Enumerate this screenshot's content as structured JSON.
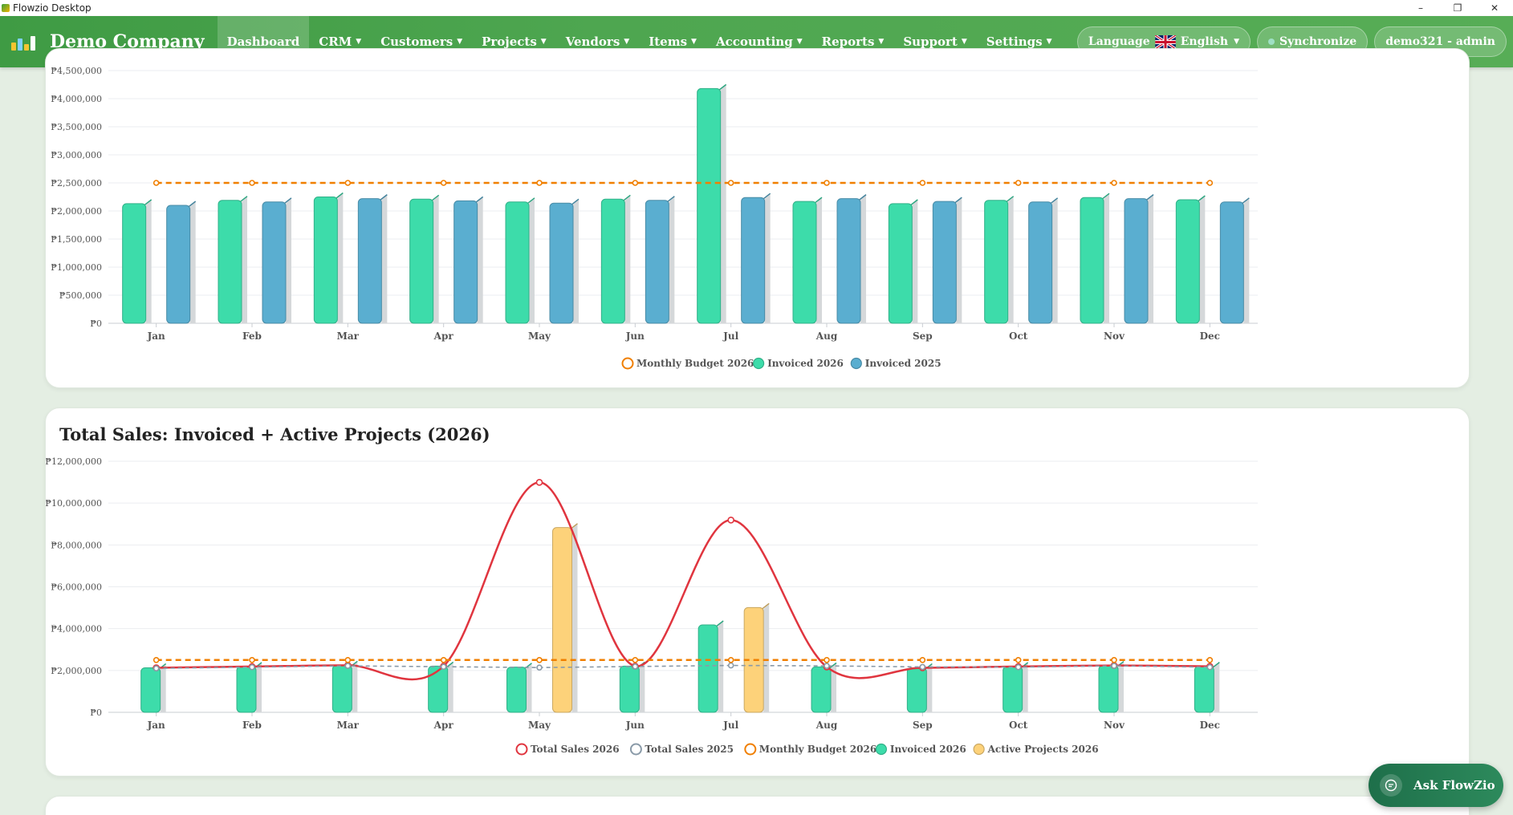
{
  "window": {
    "title": "Flowzio Desktop",
    "controls": [
      "–",
      "❐",
      "✕"
    ]
  },
  "brand": {
    "name": "Demo Company"
  },
  "nav": {
    "items": [
      {
        "label": "Dashboard",
        "active": true,
        "dropdown": false
      },
      {
        "label": "CRM",
        "dropdown": true
      },
      {
        "label": "Customers",
        "dropdown": true
      },
      {
        "label": "Projects",
        "dropdown": true
      },
      {
        "label": "Vendors",
        "dropdown": true
      },
      {
        "label": "Items",
        "dropdown": true
      },
      {
        "label": "Accounting",
        "dropdown": true
      },
      {
        "label": "Reports",
        "dropdown": true
      },
      {
        "label": "Support",
        "dropdown": true
      },
      {
        "label": "Settings",
        "dropdown": true
      }
    ],
    "language_label": "Language",
    "language_value": "English",
    "sync_label": "Synchronize",
    "user_label": "demo321 - admin"
  },
  "colors": {
    "nav_green": "#4ea650",
    "budget_orange": "#f07f00",
    "invoiced_2026": "#3ddcaa",
    "invoiced_2025": "#5aaed0",
    "total_sales_2026": "#e0353f",
    "total_sales_2025": "#8a9aa8",
    "active_projects": "#fdd27a"
  },
  "chart_data": [
    {
      "type": "bar",
      "title": "",
      "categories": [
        "Jan",
        "Feb",
        "Mar",
        "Apr",
        "May",
        "Jun",
        "Jul",
        "Aug",
        "Sep",
        "Oct",
        "Nov",
        "Dec"
      ],
      "y_ticks": [
        "₱0",
        "₱500,000",
        "₱1,000,000",
        "₱1,500,000",
        "₱2,000,000",
        "₱2,500,000",
        "₱3,000,000",
        "₱3,500,000",
        "₱4,000,000",
        "₱4,500,000"
      ],
      "ylim": [
        0,
        4500000
      ],
      "grid": true,
      "legend_position": "bottom-center",
      "series": [
        {
          "name": "Monthly Budget 2026",
          "kind": "line",
          "style": "dashed",
          "values": [
            2500000,
            2500000,
            2500000,
            2500000,
            2500000,
            2500000,
            2500000,
            2500000,
            2500000,
            2500000,
            2500000,
            2500000
          ]
        },
        {
          "name": "Invoiced 2026",
          "kind": "bar",
          "values": [
            2130000,
            2190000,
            2250000,
            2210000,
            2160000,
            2210000,
            4180000,
            2170000,
            2130000,
            2190000,
            2240000,
            2200000
          ]
        },
        {
          "name": "Invoiced 2025",
          "kind": "bar",
          "values": [
            2100000,
            2160000,
            2220000,
            2180000,
            2140000,
            2190000,
            2240000,
            2220000,
            2170000,
            2160000,
            2220000,
            2160000
          ]
        }
      ]
    },
    {
      "type": "bar",
      "title": "Total Sales: Invoiced + Active Projects (2026)",
      "categories": [
        "Jan",
        "Feb",
        "Mar",
        "Apr",
        "May",
        "Jun",
        "Jul",
        "Aug",
        "Sep",
        "Oct",
        "Nov",
        "Dec"
      ],
      "y_ticks": [
        "₱0",
        "₱2,000,000",
        "₱4,000,000",
        "₱6,000,000",
        "₱8,000,000",
        "₱10,000,000",
        "₱12,000,000"
      ],
      "ylim": [
        0,
        12000000
      ],
      "grid": true,
      "legend_position": "bottom-center",
      "series": [
        {
          "name": "Total Sales 2026",
          "kind": "line",
          "style": "smooth",
          "values": [
            2130000,
            2190000,
            2250000,
            2210000,
            10990000,
            2210000,
            9190000,
            2170000,
            2130000,
            2190000,
            2240000,
            2200000
          ]
        },
        {
          "name": "Total Sales 2025",
          "kind": "line",
          "style": "dashed",
          "values": [
            2100000,
            2160000,
            2220000,
            2180000,
            2140000,
            2190000,
            2240000,
            2220000,
            2170000,
            2160000,
            2220000,
            2160000
          ]
        },
        {
          "name": "Monthly Budget 2026",
          "kind": "line",
          "style": "dashed",
          "values": [
            2500000,
            2500000,
            2500000,
            2500000,
            2500000,
            2500000,
            2500000,
            2500000,
            2500000,
            2500000,
            2500000,
            2500000
          ]
        },
        {
          "name": "Invoiced 2026",
          "kind": "bar",
          "values": [
            2130000,
            2190000,
            2250000,
            2210000,
            2160000,
            2210000,
            4180000,
            2170000,
            2130000,
            2190000,
            2240000,
            2200000
          ]
        },
        {
          "name": "Active Projects 2026",
          "kind": "bar",
          "values": [
            0,
            0,
            0,
            0,
            8830000,
            0,
            5010000,
            0,
            0,
            0,
            0,
            0
          ]
        }
      ]
    }
  ],
  "ask_button": {
    "label": "Ask FlowZio"
  }
}
